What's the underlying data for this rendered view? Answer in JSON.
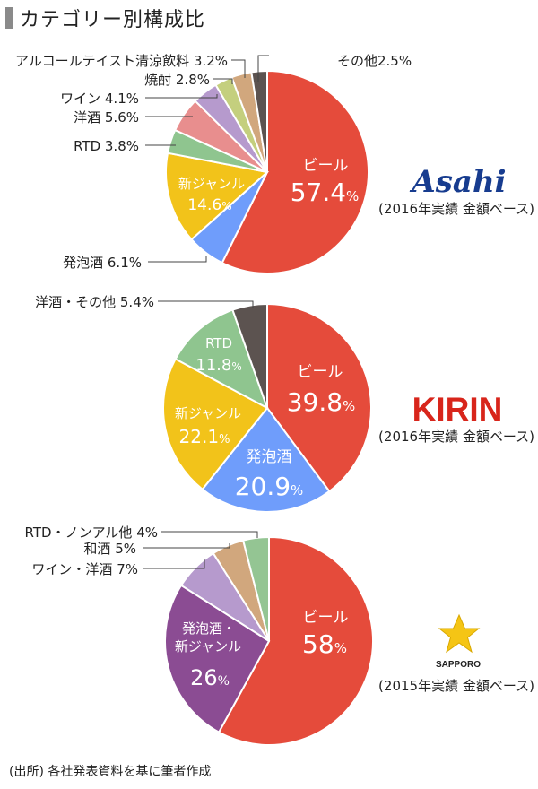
{
  "title": "カテゴリー別構成比",
  "source": "(出所) 各社発表資料を基に筆者作成",
  "colors": {
    "beer": "#e54b3b",
    "happoshu": "#6f9dfb",
    "shin_genre": "#f2c31a",
    "rtd": "#8fc58f",
    "yoshu": "#e88e8e",
    "wine": "#b69acd",
    "shochu": "#c4cf7e",
    "alcohol_free": "#d1a77d",
    "other": "#5c5350",
    "sapporo_happo_shin": "#8b4c93",
    "wafu": "#d1a77d",
    "rtd_nonal": "#94c593",
    "asahi_logo": "#173c8f",
    "kirin_logo": "#d8251b",
    "sapporo_star": "#f5c515"
  },
  "chart_data": [
    {
      "type": "pie",
      "company": "Asahi",
      "note": "(2016年実績 金額ベース)",
      "slices": [
        {
          "label": "ビール",
          "value": 57.4,
          "color": "#e54b3b",
          "inside": true
        },
        {
          "label": "発泡酒",
          "value": 6.1,
          "color": "#6f9dfb",
          "inside": false
        },
        {
          "label": "新ジャンル",
          "value": 14.6,
          "color": "#f2c31a",
          "inside": true
        },
        {
          "label": "RTD",
          "value": 3.8,
          "color": "#8fc58f",
          "inside": false
        },
        {
          "label": "洋酒",
          "value": 5.6,
          "color": "#e88e8e",
          "inside": false
        },
        {
          "label": "ワイン",
          "value": 4.1,
          "color": "#b69acd",
          "inside": false
        },
        {
          "label": "焼酎",
          "value": 2.8,
          "color": "#c4cf7e",
          "inside": false
        },
        {
          "label": "アルコールテイスト清涼飲料",
          "value": 3.2,
          "color": "#d1a77d",
          "inside": false
        },
        {
          "label": "その他",
          "value": 2.5,
          "color": "#5c5350",
          "inside": false
        }
      ],
      "outside_labels": [
        "その他2.5%",
        "アルコールテイスト清涼飲料 3.2%",
        "焼酎 2.8%",
        "ワイン 4.1%",
        "洋酒 5.6%",
        "RTD 3.8%",
        "発泡酒 6.1%"
      ]
    },
    {
      "type": "pie",
      "company": "KIRIN",
      "note": "(2016年実績 金額ベース)",
      "slices": [
        {
          "label": "ビール",
          "value": 39.8,
          "color": "#e54b3b",
          "inside": true
        },
        {
          "label": "発泡酒",
          "value": 20.9,
          "color": "#6f9dfb",
          "inside": true
        },
        {
          "label": "新ジャンル",
          "value": 22.1,
          "color": "#f2c31a",
          "inside": true
        },
        {
          "label": "RTD",
          "value": 11.8,
          "color": "#8fc58f",
          "inside": true
        },
        {
          "label": "洋酒・その他",
          "value": 5.4,
          "color": "#5c5350",
          "inside": false
        }
      ],
      "outside_labels": [
        "洋酒・その他 5.4%"
      ]
    },
    {
      "type": "pie",
      "company": "SAPPORO",
      "note": "(2015年実績 金額ベース)",
      "slices": [
        {
          "label": "ビール",
          "value": 58,
          "color": "#e54b3b",
          "inside": true
        },
        {
          "label": "発泡酒・新ジャンル",
          "value": 26,
          "color": "#8b4c93",
          "inside": true
        },
        {
          "label": "ワイン・洋酒",
          "value": 7,
          "color": "#b69acd",
          "inside": false
        },
        {
          "label": "和酒",
          "value": 5,
          "color": "#d1a77d",
          "inside": false
        },
        {
          "label": "RTD・ノンアル他",
          "value": 4,
          "color": "#94c593",
          "inside": false
        }
      ],
      "outside_labels": [
        "RTD・ノンアル他 4%",
        "和酒 5%",
        "ワイン・洋酒 7%"
      ]
    }
  ],
  "inside_text": {
    "asahi_beer_name": "ビール",
    "asahi_beer_val": "57.4",
    "pct": "%",
    "asahi_shin_name": "新ジャンル",
    "asahi_shin_val": "14.6",
    "kirin_beer_name": "ビール",
    "kirin_beer_val": "39.8",
    "kirin_happo_name": "発泡酒",
    "kirin_happo_val": "20.9",
    "kirin_shin_name": "新ジャンル",
    "kirin_shin_val": "22.1",
    "kirin_rtd_name": "RTD",
    "kirin_rtd_val": "11.8",
    "sap_beer_name": "ビール",
    "sap_beer_val": "58",
    "sap_hs_name1": "発泡酒・",
    "sap_hs_name2": "新ジャンル",
    "sap_hs_val": "26"
  },
  "logos": {
    "asahi": "Asahi",
    "kirin": "KIRIN",
    "sapporo": "SAPPORO"
  }
}
